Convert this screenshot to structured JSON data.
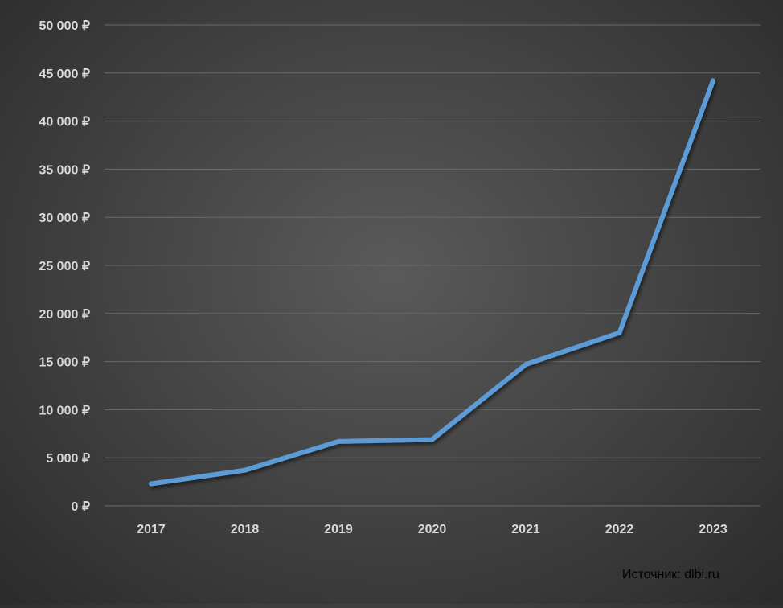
{
  "chart_data": {
    "type": "line",
    "categories": [
      "2017",
      "2018",
      "2019",
      "2020",
      "2021",
      "2022",
      "2023"
    ],
    "values": [
      2300,
      3700,
      6700,
      6900,
      14700,
      18000,
      44200
    ],
    "ylim": [
      0,
      50000
    ],
    "yticks": [
      0,
      5000,
      10000,
      15000,
      20000,
      25000,
      30000,
      35000,
      40000,
      45000,
      50000
    ],
    "ytick_labels": [
      "0 ₽",
      "5 000 ₽",
      "10 000 ₽",
      "15 000 ₽",
      "20 000 ₽",
      "25 000 ₽",
      "30 000 ₽",
      "35 000 ₽",
      "40 000 ₽",
      "45 000 ₽",
      "50 000 ₽"
    ],
    "grid": true,
    "line_color": "#5b9bd5",
    "grid_color": "#6a6a6a",
    "label_color": "#d9d9d9"
  },
  "source_note": "Источник: dlbi.ru"
}
